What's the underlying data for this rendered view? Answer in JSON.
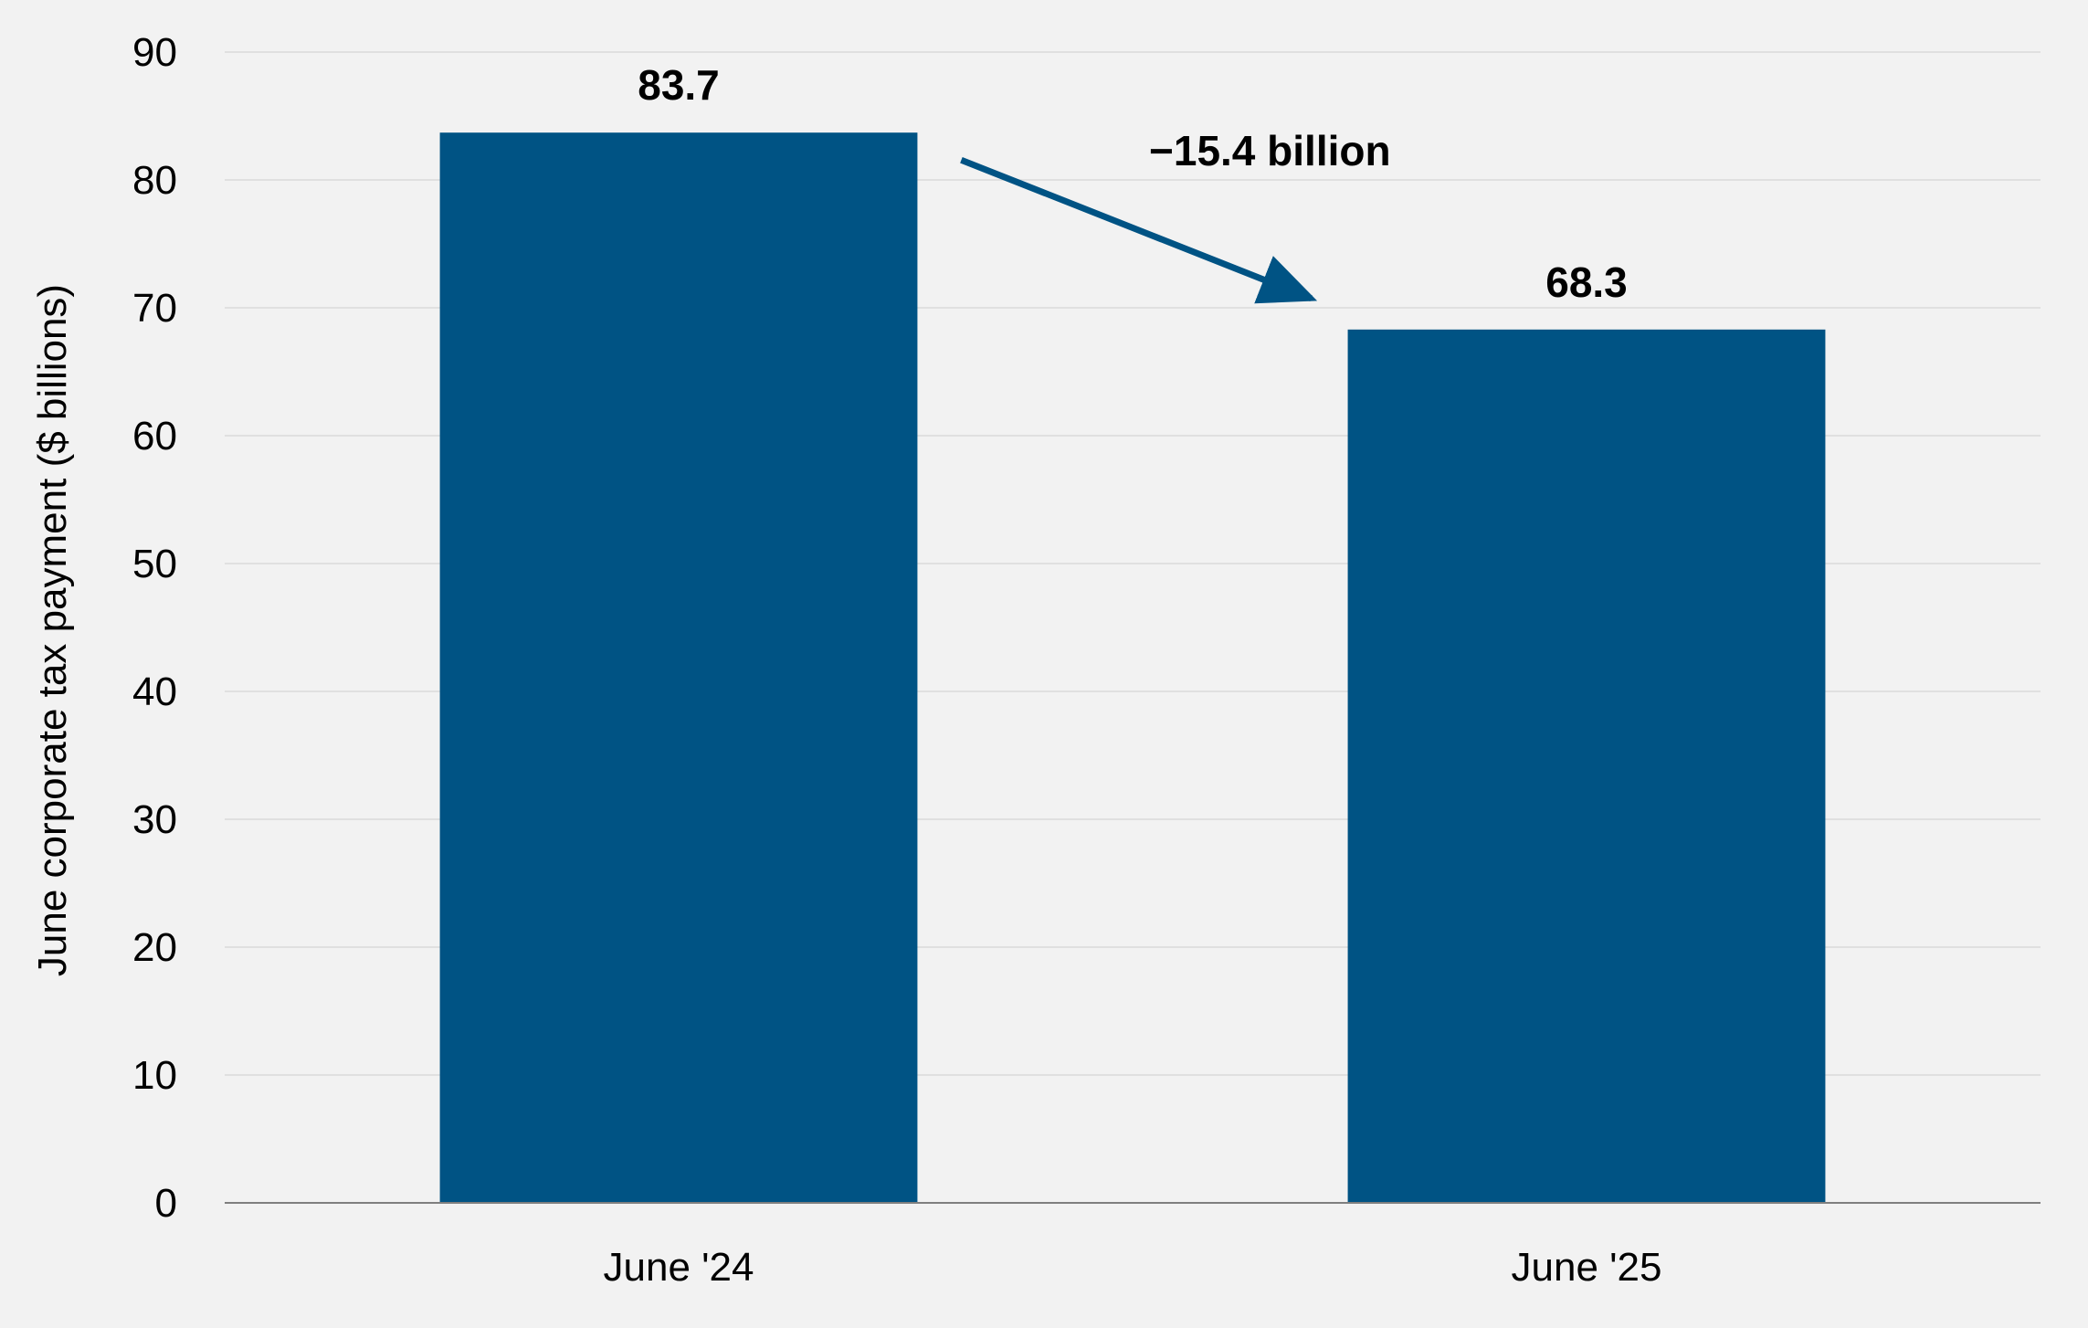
{
  "chart_data": {
    "type": "bar",
    "title": "",
    "xlabel": "",
    "ylabel": "June corporate tax payment ($ billions)",
    "categories": [
      "June '24",
      "June '25"
    ],
    "values": [
      83.7,
      68.3
    ],
    "data_labels": [
      "83.7",
      "68.3"
    ],
    "ylim": [
      0,
      90
    ],
    "yticks": [
      0,
      10,
      20,
      30,
      40,
      50,
      60,
      70,
      80,
      90
    ],
    "grid": true,
    "legend": "none",
    "annotations": [
      {
        "text": "−15.4 billion",
        "type": "arrow",
        "from_category": "June '24",
        "to_category": "June '25"
      }
    ],
    "colors": {
      "bar": "#005384",
      "arrow": "#005384",
      "background": "#f2f2f2",
      "grid": "#d9d9d9",
      "axis": "#7f7f7f"
    }
  }
}
